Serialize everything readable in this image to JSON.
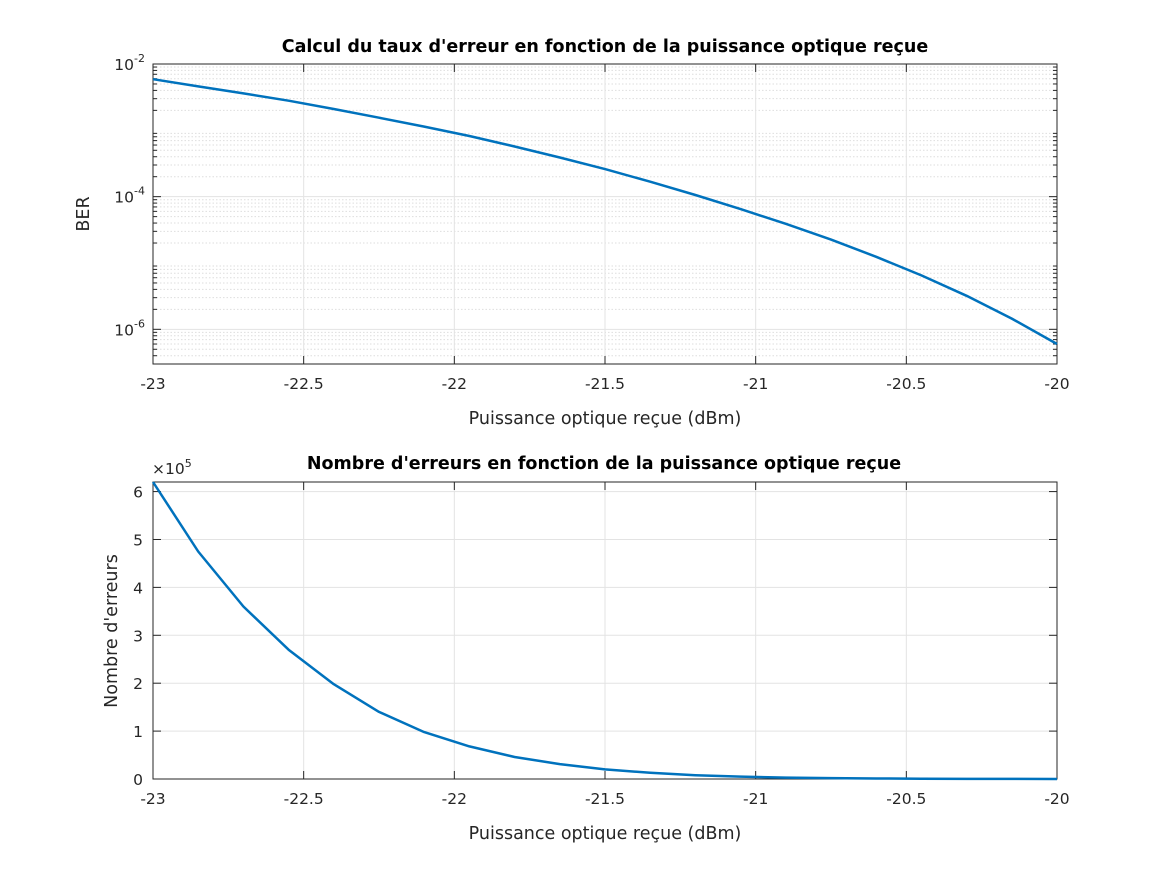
{
  "chart_data": [
    {
      "type": "line",
      "title": "Calcul du taux d'erreur en fonction de la puissance optique reçue",
      "xlabel": "Puissance optique reçue (dBm)",
      "ylabel": "BER",
      "xlim": [
        -23,
        -20
      ],
      "ylim": [
        3e-07,
        0.01
      ],
      "yscale": "log",
      "grid": true,
      "minor_grid": true,
      "xticks": [
        -23,
        -22.5,
        -22,
        -21.5,
        -21,
        -20.5,
        -20
      ],
      "xtick_labels": [
        "-23",
        "-22.5",
        "-22",
        "-21.5",
        "-21",
        "-20.5",
        "-20"
      ],
      "yticks": [
        1e-06,
        0.0001,
        0.01
      ],
      "ytick_labels": [
        {
          "base": "10",
          "exp": "-6"
        },
        {
          "base": "10",
          "exp": "-4"
        },
        {
          "base": "10",
          "exp": "-2"
        }
      ],
      "series": [
        {
          "color": "#0072bd",
          "x": [
            -23,
            -22.85,
            -22.7,
            -22.55,
            -22.4,
            -22.25,
            -22.1,
            -21.95,
            -21.8,
            -21.65,
            -21.5,
            -21.35,
            -21.2,
            -21.05,
            -20.9,
            -20.75,
            -20.6,
            -20.45,
            -20.3,
            -20.15,
            -20.0
          ],
          "y": [
            0.0059,
            0.0046,
            0.0036,
            0.0028,
            0.0021,
            0.00155,
            0.00114,
            0.00082,
            0.00057,
            0.00039,
            0.00026,
            0.000168,
            0.000106,
            6.5e-05,
            3.9e-05,
            2.25e-05,
            1.24e-05,
            6.5e-06,
            3.2e-06,
            1.45e-06,
            6e-07
          ]
        }
      ]
    },
    {
      "type": "line",
      "title": "Nombre d'erreurs en fonction de la puissance optique reçue",
      "xlabel": "Puissance optique reçue (dBm)",
      "ylabel": "Nombre d'erreurs",
      "xlim": [
        -23,
        -20
      ],
      "ylim": [
        0,
        6.2
      ],
      "y_multiplier": {
        "prefix": "×10",
        "exp": "5"
      },
      "grid": true,
      "xticks": [
        -23,
        -22.5,
        -22,
        -21.5,
        -21,
        -20.5,
        -20
      ],
      "xtick_labels": [
        "-23",
        "-22.5",
        "-22",
        "-21.5",
        "-21",
        "-20.5",
        "-20"
      ],
      "yticks": [
        0,
        1,
        2,
        3,
        4,
        5,
        6
      ],
      "ytick_labels": [
        "0",
        "1",
        "2",
        "3",
        "4",
        "5",
        "6"
      ],
      "series": [
        {
          "color": "#0072bd",
          "x": [
            -23,
            -22.85,
            -22.7,
            -22.55,
            -22.4,
            -22.25,
            -22.1,
            -21.95,
            -21.8,
            -21.65,
            -21.5,
            -21.35,
            -21.2,
            -21.05,
            -20.9,
            -20.75,
            -20.6,
            -20.45,
            -20.3,
            -20.15,
            -20.0
          ],
          "y": [
            6.2,
            4.75,
            3.6,
            2.7,
            1.98,
            1.4,
            0.98,
            0.68,
            0.46,
            0.31,
            0.2,
            0.13,
            0.08,
            0.05,
            0.03,
            0.018,
            0.01,
            0.006,
            0.003,
            0.002,
            0.001
          ]
        }
      ]
    }
  ]
}
